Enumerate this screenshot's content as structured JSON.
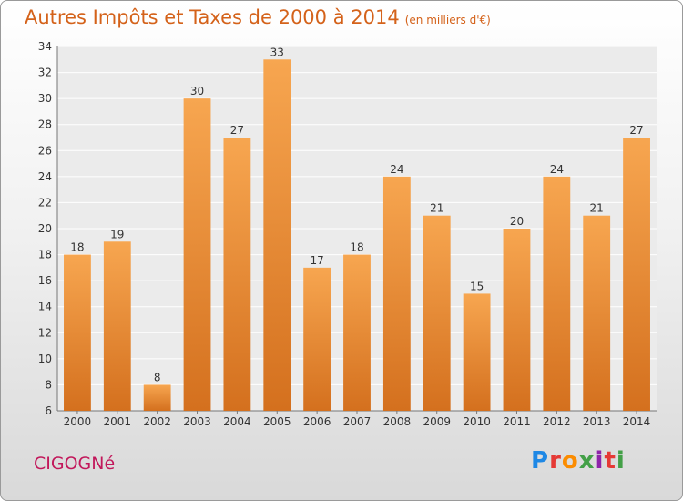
{
  "header": {
    "title": "Autres Impôts et Taxes de 2000 à 2014",
    "unit": "(en milliers d'€)"
  },
  "footer": {
    "commune": "CIGOGNé",
    "logo": "Proxiti"
  },
  "colors": {
    "bar_light": "#f7a650",
    "bar_dark": "#d4701e",
    "title": "#d4621a",
    "commune": "#c2185b"
  },
  "chart_data": {
    "type": "bar",
    "title": "Autres Impôts et Taxes de 2000 à 2014",
    "subtitle": "(en milliers d'€)",
    "xlabel": "",
    "ylabel": "",
    "categories": [
      "2000",
      "2001",
      "2002",
      "2003",
      "2004",
      "2005",
      "2006",
      "2007",
      "2008",
      "2009",
      "2010",
      "2011",
      "2012",
      "2013",
      "2014"
    ],
    "values": [
      18,
      19,
      8,
      30,
      27,
      33,
      17,
      18,
      24,
      21,
      15,
      20,
      24,
      21,
      27
    ],
    "ylim": [
      6,
      34
    ],
    "yticks": [
      6,
      8,
      10,
      12,
      14,
      16,
      18,
      20,
      22,
      24,
      26,
      28,
      30,
      32,
      34
    ],
    "grid": true,
    "legend": "none"
  }
}
